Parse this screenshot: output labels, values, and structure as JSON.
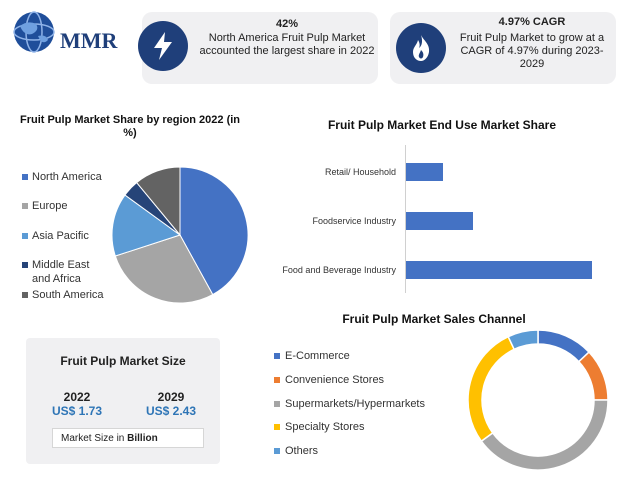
{
  "logo": {
    "text": "MMR"
  },
  "stats": [
    {
      "icon": "lightning-icon",
      "value": "42%",
      "text": "North America Fruit Pulp Market accounted the largest share in 2022"
    },
    {
      "icon": "flame-icon",
      "value": "4.97% CAGR",
      "text": "Fruit Pulp Market to grow at a CAGR of 4.97% during 2023-2029"
    }
  ],
  "colors": {
    "blue": "#4472c4",
    "gray": "#a5a5a5",
    "lightblue": "#5b9bd5",
    "navy": "#264478",
    "darkgray": "#636363",
    "orange": "#ed7d31",
    "yellow": "#ffc000"
  },
  "market_size": {
    "title": "Fruit Pulp Market Size",
    "years": [
      {
        "year": "2022",
        "value": "US$ 1.73"
      },
      {
        "year": "2029",
        "value": "US$ 2.43"
      }
    ],
    "note_prefix": "Market Size in ",
    "note_unit": "Billion"
  },
  "chart_data": [
    {
      "type": "pie",
      "title": "Fruit Pulp Market Share by region 2022 (in %)",
      "categories": [
        "North America",
        "Europe",
        "Asia Pacific",
        "Middle East and Africa",
        "South America"
      ],
      "values": [
        42,
        28,
        15,
        4,
        11
      ],
      "legend": "left"
    },
    {
      "type": "bar",
      "orientation": "horizontal",
      "title": "Fruit Pulp Market End Use Market Share",
      "categories": [
        "Retail/ Household",
        "Foodservice Industry",
        "Food and Beverage Industry"
      ],
      "values": [
        20,
        36,
        100
      ]
    },
    {
      "type": "pie",
      "subtype": "donut",
      "title": "Fruit Pulp Market Sales Channel",
      "categories": [
        "E-Commerce",
        "Convenience Stores",
        "Supermarkets/Hypermarkets",
        "Specialty Stores",
        "Others"
      ],
      "values": [
        13,
        12,
        40,
        28,
        7
      ],
      "legend": "left"
    }
  ]
}
